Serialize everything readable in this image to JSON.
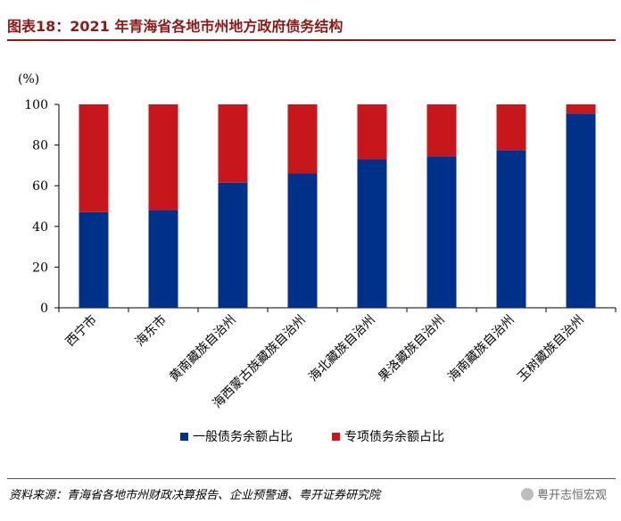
{
  "header": {
    "title": "图表18：2021 年青海省各地市州地方政府债务结构"
  },
  "chart_data": {
    "type": "bar",
    "stacked": true,
    "title": "2021 年青海省各地市州地方政府债务结构",
    "ylabel": "(%)",
    "ylim": [
      0,
      100
    ],
    "yticks": [
      0,
      20,
      40,
      60,
      80,
      100
    ],
    "categories": [
      "西宁市",
      "海东市",
      "黄南藏族自治州",
      "海西蒙古族藏族自治州",
      "海北藏族自治州",
      "果洛藏族自治州",
      "海南藏族自治州",
      "玉树藏族自治州"
    ],
    "series": [
      {
        "name": "一般债务余额占比",
        "color": "#003087",
        "values": [
          47,
          48,
          61.5,
          66,
          73,
          74.5,
          77.5,
          95.5
        ]
      },
      {
        "name": "专项债务余额占比",
        "color": "#c8161d",
        "values": [
          53,
          52,
          38.5,
          34,
          27,
          25.5,
          22.5,
          4.5
        ]
      }
    ],
    "legend": "bottom-center"
  },
  "footer": {
    "source": "资料来源：青海省各地市州财政决算报告、企业预警通、粤开证券研究院",
    "watermark": "粤开志恒宏观"
  }
}
